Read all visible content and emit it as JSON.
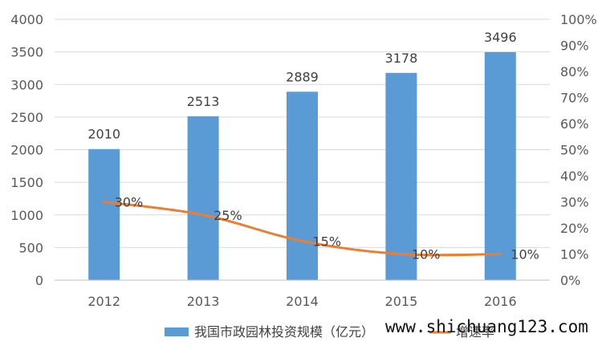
{
  "chart_data": {
    "type": "bar",
    "categories": [
      "2012",
      "2013",
      "2014",
      "2015",
      "2016"
    ],
    "series": [
      {
        "name": "我国市政园林投资规模（亿元）",
        "type": "bar",
        "axis": "left",
        "values": [
          2010,
          2513,
          2889,
          3178,
          3496
        ],
        "labels": [
          "2010",
          "2513",
          "2889",
          "3178",
          "3496"
        ],
        "color": "#5b9bd5"
      },
      {
        "name": "增速率",
        "type": "line",
        "axis": "right",
        "values": [
          0.3,
          0.25,
          0.15,
          0.1,
          0.1
        ],
        "labels": [
          "30%",
          "25%",
          "15%",
          "10%",
          "10%"
        ],
        "color": "#ed7d31"
      }
    ],
    "y_left": {
      "min": 0,
      "max": 4000,
      "ticks": [
        "0",
        "500",
        "1000",
        "1500",
        "2000",
        "2500",
        "3000",
        "3500",
        "4000"
      ]
    },
    "y_right": {
      "min": 0,
      "max": 1,
      "ticks": [
        "0%",
        "10%",
        "20%",
        "30%",
        "40%",
        "50%",
        "60%",
        "70%",
        "80%",
        "90%",
        "100%"
      ]
    },
    "grid": true,
    "legend_position": "bottom",
    "title": "",
    "xlabel": "",
    "ylabel": ""
  },
  "watermark": "www.shichuang123.com"
}
